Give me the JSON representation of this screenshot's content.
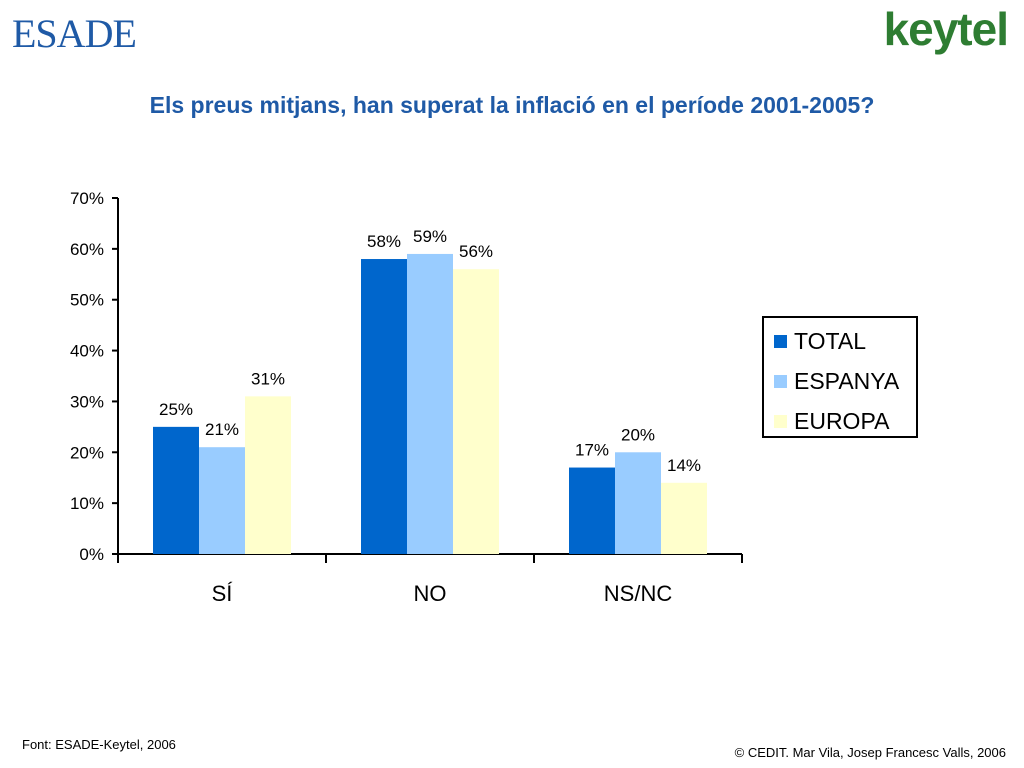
{
  "header": {
    "esade_logo": "ESADE",
    "keytel_logo": "keytel"
  },
  "slide": {
    "title": "Els preus mitjans, han superat la inflació en el període 2001-2005?"
  },
  "chart_data": {
    "type": "bar",
    "categories": [
      "SÍ",
      "NO",
      "NS/NC"
    ],
    "series": [
      {
        "name": "TOTAL",
        "values": [
          25,
          58,
          17
        ],
        "labels": [
          "25%",
          "58%",
          "17%"
        ],
        "color": "#0066cc"
      },
      {
        "name": "ESPANYA",
        "values": [
          21,
          59,
          20
        ],
        "labels": [
          "21%",
          "59%",
          "20%"
        ],
        "color": "#99ccff"
      },
      {
        "name": "EUROPA",
        "values": [
          31,
          56,
          14
        ],
        "labels": [
          "31%",
          "56%",
          "14%"
        ],
        "color": "#ffffcc"
      }
    ],
    "y_ticks": [
      "0%",
      "10%",
      "20%",
      "30%",
      "40%",
      "50%",
      "60%",
      "70%"
    ],
    "ylim": [
      0,
      70
    ],
    "legend_position": "right",
    "grid": false
  },
  "footer": {
    "source": "Font: ESADE-Keytel, 2006",
    "copyright": "© CEDIT. Mar Vila, Josep Francesc Valls, 2006"
  }
}
